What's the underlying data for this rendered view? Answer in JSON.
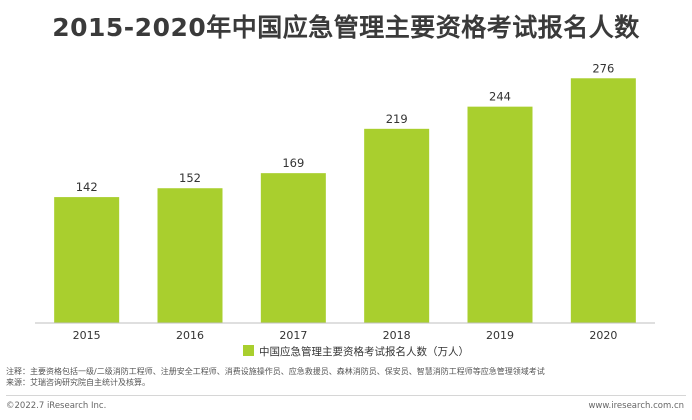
{
  "chart_data": {
    "type": "bar",
    "title": "2015-2020年中国应急管理主要资格考试报名人数",
    "categories": [
      "2015",
      "2016",
      "2017",
      "2018",
      "2019",
      "2020"
    ],
    "series": [
      {
        "name": "中国应急管理主要资格考试报名人数（万人）",
        "values": [
          142,
          152,
          169,
          219,
          244,
          276
        ]
      }
    ],
    "data_labels": [
      "142",
      "152",
      "169",
      "219",
      "244",
      "276"
    ],
    "ylim": [
      0,
      300
    ],
    "grid": false,
    "legend_position": "bottom-center",
    "bar_color": "#a9cf2e"
  },
  "notes": {
    "note": "注释：主要资格包括一级/二级消防工程师、注册安全工程师、消费设施操作员、应急救援员、森林消防员、保安员、智慧消防工程师等应急管理领域考试",
    "source": "来源：艾瑞咨询研究院自主统计及核算。"
  },
  "footer": {
    "copyright": "©2022.7 iResearch Inc.",
    "website": "www.iresearch.com.cn"
  }
}
